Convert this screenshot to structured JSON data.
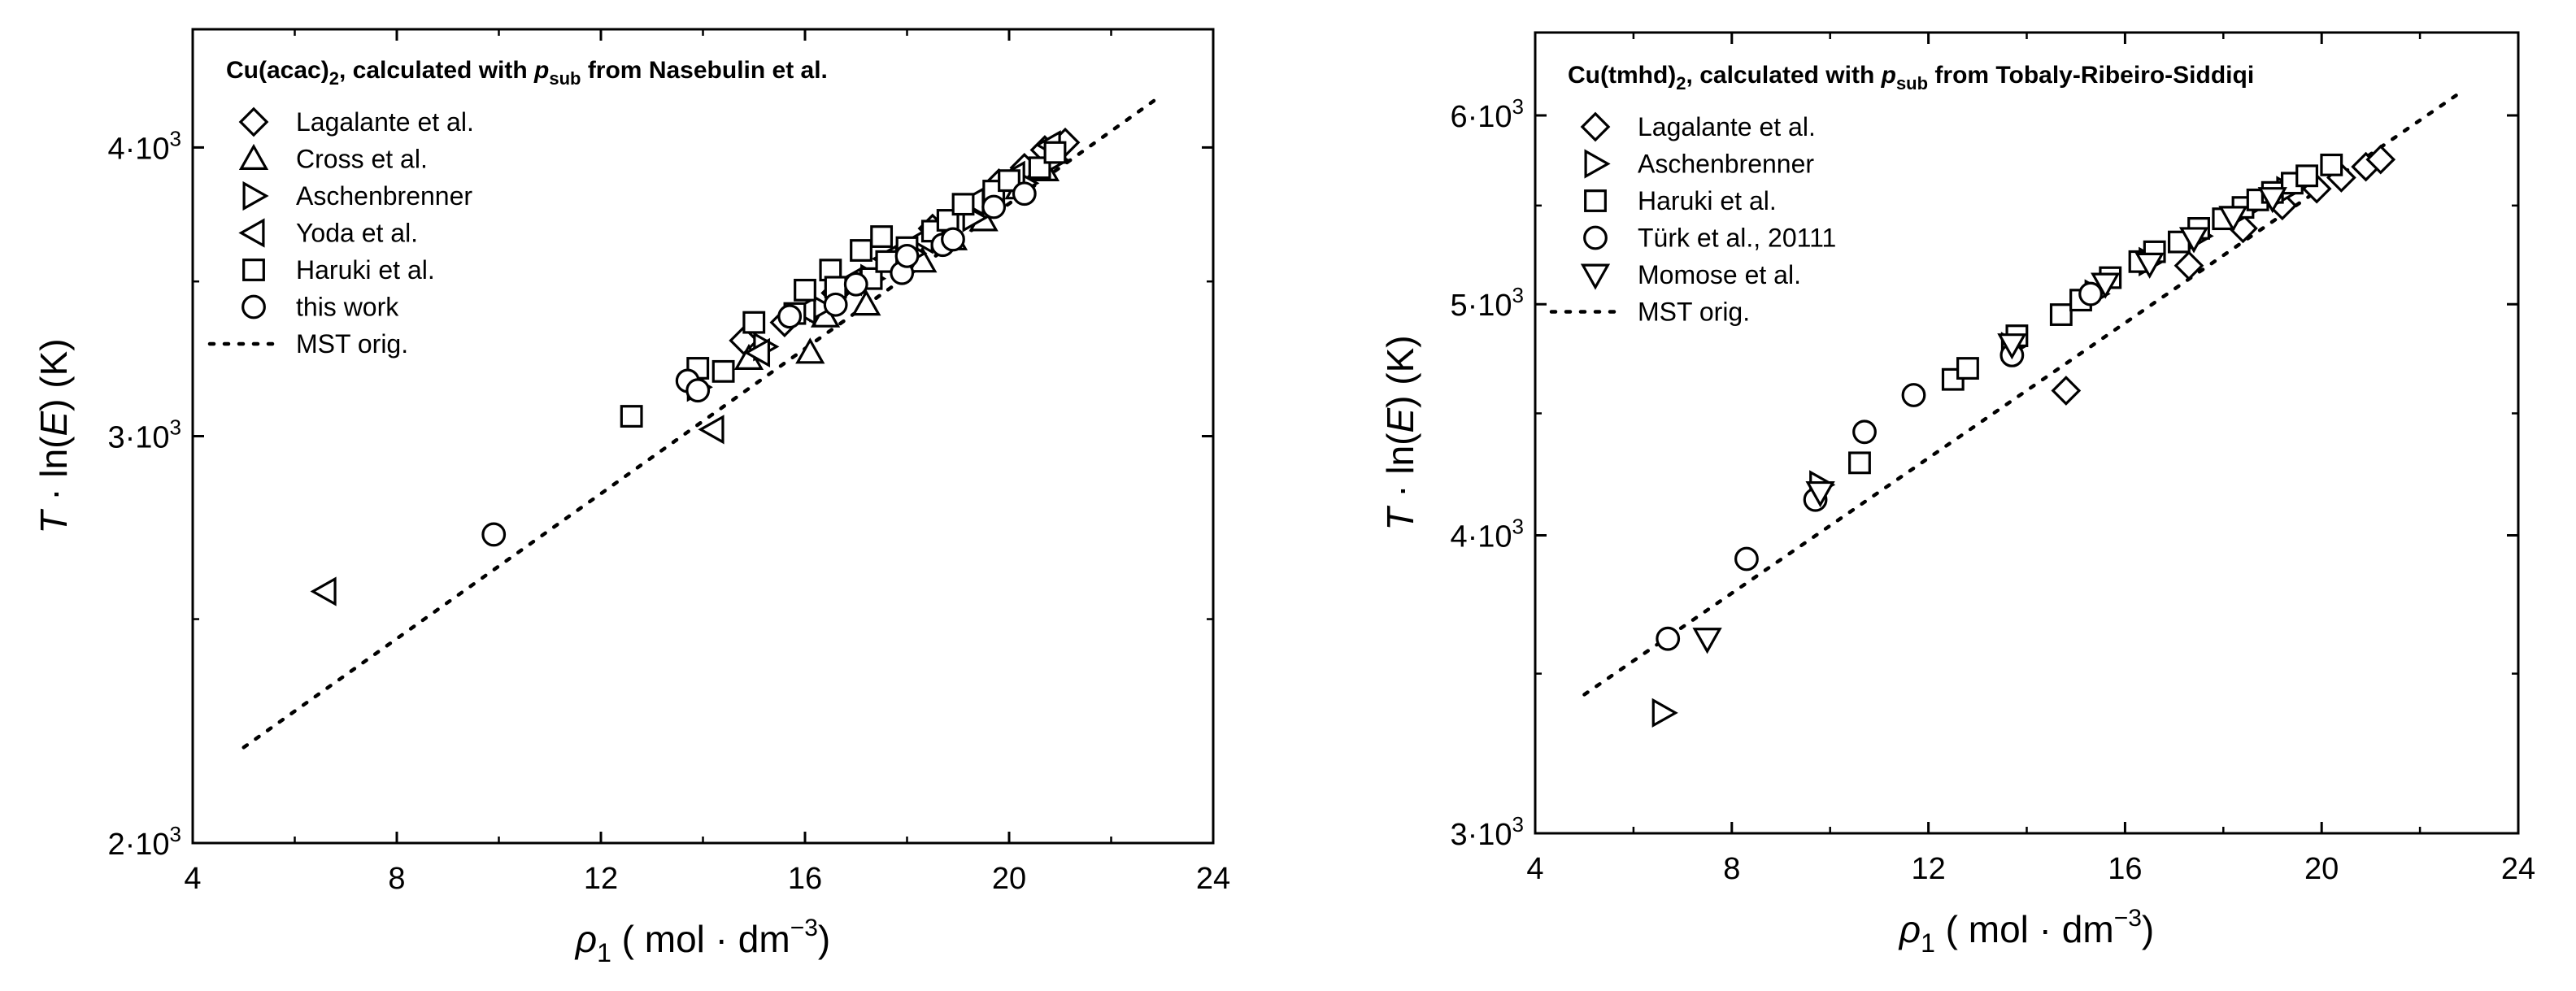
{
  "chart_data": [
    {
      "id": "left",
      "type": "scatter",
      "title": "Cu(acac)",
      "title_sub": "2",
      "title_rest": ", calculated with ",
      "title_p": "p",
      "title_psub": "sub",
      "title_tail": " from Nasebulin et al.",
      "xlabel": {
        "var": "ρ",
        "varsub": "1",
        "unit_pre": " ( mol · dm",
        "unit_exp": "−3",
        "unit_post": ")"
      },
      "ylabel": {
        "var": "T",
        "mid": " · ln(",
        "var2": "E",
        "post": ") (K)"
      },
      "xlim": [
        4,
        24
      ],
      "ylim": [
        2000,
        4500
      ],
      "yscale": "log",
      "xticks": [
        4,
        8,
        12,
        16,
        20,
        24
      ],
      "xtick_labels": [
        "4",
        "8",
        "12",
        "16",
        "20",
        "24"
      ],
      "yticks": [
        2000,
        3000,
        4000
      ],
      "ytick_labels": [
        {
          "base": "2·10",
          "exp": "3"
        },
        {
          "base": "3·10",
          "exp": "3"
        },
        {
          "base": "4·10",
          "exp": "3"
        }
      ],
      "minor_yticks": [
        2500,
        3500
      ],
      "minor_xticks": [
        6,
        10,
        14,
        18,
        22
      ],
      "series": [
        {
          "name": "Lagalante et al.",
          "marker": "diamond",
          "points": [
            [
              21.1,
              4020
            ],
            [
              20.7,
              3990
            ],
            [
              20.3,
              3920
            ],
            [
              19.8,
              3860
            ],
            [
              18.5,
              3690
            ],
            [
              17.8,
              3580
            ],
            [
              16.6,
              3460
            ],
            [
              15.6,
              3360
            ],
            [
              14.8,
              3300
            ]
          ]
        },
        {
          "name": "Cross et al.",
          "marker": "triangle-up",
          "points": [
            [
              16.1,
              3260
            ],
            [
              17.2,
              3420
            ],
            [
              18.3,
              3570
            ],
            [
              19.5,
              3720
            ],
            [
              20.2,
              3840
            ],
            [
              20.7,
              3910
            ],
            [
              16.4,
              3380
            ],
            [
              18.9,
              3650
            ],
            [
              14.9,
              3240
            ]
          ]
        },
        {
          "name": "Aschenbrenner",
          "marker": "triangle-right",
          "points": [
            [
              13.9,
              3150
            ],
            [
              15.2,
              3280
            ],
            [
              16.3,
              3410
            ],
            [
              17.3,
              3510
            ],
            [
              18.1,
              3600
            ],
            [
              19.3,
              3730
            ],
            [
              20.3,
              3860
            ],
            [
              20.9,
              3950
            ]
          ]
        },
        {
          "name": "Yoda et al.",
          "marker": "triangle-left",
          "points": [
            [
              6.6,
              2570
            ],
            [
              14.2,
              3020
            ],
            [
              15.1,
              3260
            ],
            [
              16.0,
              3400
            ],
            [
              16.9,
              3500
            ],
            [
              17.6,
              3580
            ],
            [
              18.3,
              3650
            ],
            [
              19.3,
              3790
            ],
            [
              20.1,
              3890
            ],
            [
              20.8,
              4010
            ]
          ]
        },
        {
          "name": "Haruki et al.",
          "marker": "square",
          "points": [
            [
              12.6,
              3060
            ],
            [
              13.9,
              3210
            ],
            [
              14.4,
              3200
            ],
            [
              15.0,
              3360
            ],
            [
              15.8,
              3390
            ],
            [
              16.0,
              3470
            ],
            [
              16.5,
              3540
            ],
            [
              16.6,
              3480
            ],
            [
              17.1,
              3610
            ],
            [
              17.3,
              3510
            ],
            [
              17.5,
              3660
            ],
            [
              17.6,
              3570
            ],
            [
              18.0,
              3620
            ],
            [
              18.5,
              3680
            ],
            [
              18.8,
              3720
            ],
            [
              19.1,
              3780
            ],
            [
              19.7,
              3830
            ],
            [
              20.0,
              3870
            ],
            [
              20.6,
              3920
            ],
            [
              20.9,
              3980
            ]
          ]
        },
        {
          "name": "this work",
          "marker": "circle",
          "points": [
            [
              9.9,
              2720
            ],
            [
              13.7,
              3170
            ],
            [
              13.9,
              3140
            ],
            [
              15.7,
              3380
            ],
            [
              16.6,
              3420
            ],
            [
              17.0,
              3490
            ],
            [
              17.9,
              3530
            ],
            [
              18.0,
              3590
            ],
            [
              18.7,
              3630
            ],
            [
              18.9,
              3650
            ],
            [
              19.7,
              3770
            ],
            [
              20.3,
              3820
            ]
          ]
        }
      ],
      "fit_line": {
        "name": "MST orig.",
        "points": [
          [
            5.0,
            2200
          ],
          [
            22.9,
            4200
          ]
        ]
      }
    },
    {
      "id": "right",
      "type": "scatter",
      "title": "Cu(tmhd)",
      "title_sub": "2",
      "title_rest": ", calculated with ",
      "title_p": "p",
      "title_psub": "sub",
      "title_tail": " from Tobaly-Ribeiro-Siddiqi",
      "xlabel": {
        "var": "ρ",
        "varsub": "1",
        "unit_pre": " ( mol · dm",
        "unit_exp": "−3",
        "unit_post": ")"
      },
      "ylabel": {
        "var": "T",
        "mid": " · ln(",
        "var2": "E",
        "post": ") (K)"
      },
      "xlim": [
        4,
        24
      ],
      "ylim": [
        3000,
        6500
      ],
      "yscale": "log",
      "xticks": [
        4,
        8,
        12,
        16,
        20,
        24
      ],
      "xtick_labels": [
        "4",
        "8",
        "12",
        "16",
        "20",
        "24"
      ],
      "yticks": [
        3000,
        4000,
        5000,
        6000
      ],
      "ytick_labels": [
        {
          "base": "3·10",
          "exp": "3"
        },
        {
          "base": "4·10",
          "exp": "3"
        },
        {
          "base": "5·10",
          "exp": "3"
        },
        {
          "base": "6·10",
          "exp": "3"
        }
      ],
      "minor_yticks": [
        3500,
        4500,
        5500
      ],
      "minor_xticks": [
        6,
        10,
        14,
        18,
        22
      ],
      "series": [
        {
          "name": "Lagalante et al.",
          "marker": "diamond",
          "points": [
            [
              14.8,
              4600
            ],
            [
              17.3,
              5190
            ],
            [
              18.4,
              5380
            ],
            [
              19.2,
              5500
            ],
            [
              19.9,
              5590
            ],
            [
              20.4,
              5650
            ],
            [
              20.9,
              5710
            ],
            [
              21.2,
              5750
            ]
          ]
        },
        {
          "name": "Aschenbrenner",
          "marker": "triangle-right",
          "points": [
            [
              6.6,
              3370
            ],
            [
              9.8,
              4200
            ],
            [
              13.7,
              4800
            ],
            [
              15.4,
              5050
            ],
            [
              16.5,
              5210
            ],
            [
              17.5,
              5340
            ],
            [
              18.4,
              5470
            ],
            [
              19.3,
              5580
            ]
          ]
        },
        {
          "name": "Haruki et al.",
          "marker": "square",
          "points": [
            [
              10.6,
              4290
            ],
            [
              12.5,
              4650
            ],
            [
              12.8,
              4700
            ],
            [
              13.8,
              4850
            ],
            [
              14.7,
              4950
            ],
            [
              15.1,
              5020
            ],
            [
              15.7,
              5130
            ],
            [
              16.3,
              5210
            ],
            [
              16.6,
              5260
            ],
            [
              17.1,
              5310
            ],
            [
              17.5,
              5380
            ],
            [
              18.0,
              5430
            ],
            [
              18.4,
              5490
            ],
            [
              18.7,
              5530
            ],
            [
              19.0,
              5570
            ],
            [
              19.4,
              5620
            ],
            [
              19.7,
              5660
            ],
            [
              20.2,
              5720
            ]
          ]
        },
        {
          "name": "Türk et al., 20111",
          "marker": "circle",
          "points": [
            [
              6.7,
              3620
            ],
            [
              8.3,
              3910
            ],
            [
              9.7,
              4140
            ],
            [
              10.7,
              4420
            ],
            [
              11.7,
              4580
            ],
            [
              13.7,
              4760
            ],
            [
              15.3,
              5050
            ]
          ]
        },
        {
          "name": "Momose et al.",
          "marker": "triangle-down",
          "points": [
            [
              7.5,
              3620
            ],
            [
              9.8,
              4170
            ],
            [
              13.7,
              4810
            ],
            [
              15.6,
              5100
            ],
            [
              16.5,
              5200
            ],
            [
              17.4,
              5330
            ],
            [
              18.2,
              5440
            ],
            [
              19.0,
              5540
            ]
          ]
        }
      ],
      "fit_line": {
        "name": "MST orig.",
        "points": [
          [
            5.0,
            3430
          ],
          [
            22.9,
            6150
          ]
        ]
      }
    }
  ]
}
